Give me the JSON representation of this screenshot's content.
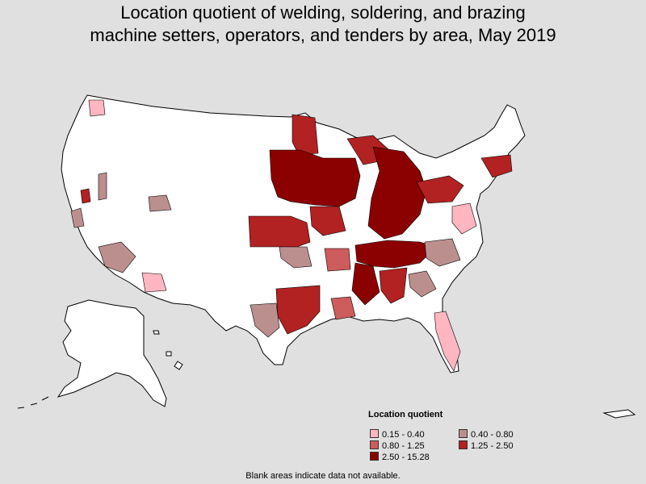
{
  "title_line1": "Location quotient of welding, soldering, and brazing",
  "title_line2": "machine setters, operators, and tenders by area, May 2019",
  "legend": {
    "title": "Location quotient",
    "items": [
      {
        "label": "0.15 - 0.40",
        "color": "#ffb6c1"
      },
      {
        "label": "0.40 - 0.80",
        "color": "#bc8f8f"
      },
      {
        "label": "0.80 - 1.25",
        "color": "#cd5c5c"
      },
      {
        "label": "1.25 - 2.50",
        "color": "#b22222"
      },
      {
        "label": "2.50 - 15.28",
        "color": "#8b0000"
      }
    ]
  },
  "footnote": "Blank areas indicate data not available.",
  "colors": {
    "background": "#e0e0e0",
    "no_data": "#ffffff",
    "border": "#000000"
  }
}
